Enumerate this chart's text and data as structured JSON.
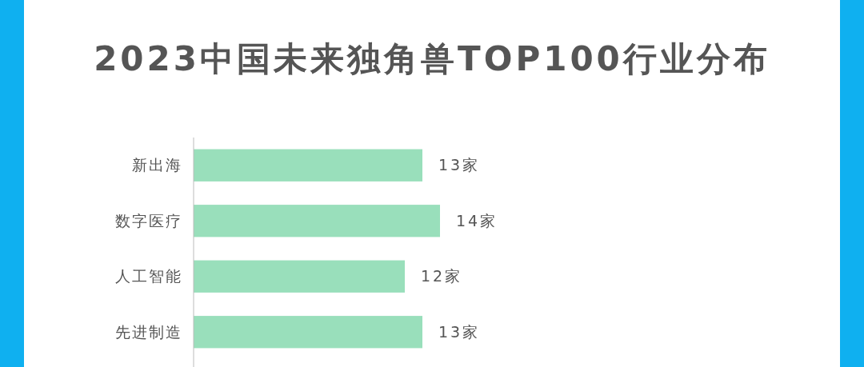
{
  "chart_data": {
    "type": "bar",
    "orientation": "horizontal",
    "title": "2023中国未来独角兽TOP100行业分布",
    "categories": [
      "新出海",
      "数字医疗",
      "人工智能",
      "先进制造"
    ],
    "values": [
      13,
      14,
      12,
      13
    ],
    "value_labels": [
      "13家",
      "14家",
      "12家",
      "13家"
    ],
    "color": "#99dfbb"
  }
}
